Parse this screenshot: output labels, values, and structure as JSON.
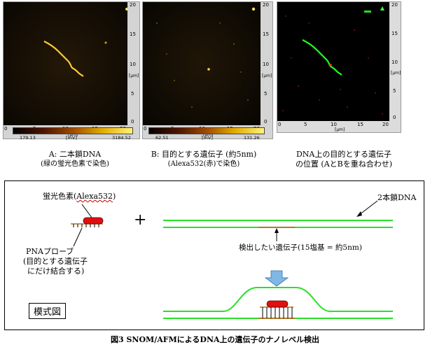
{
  "panels": [
    {
      "id": "A",
      "axis_right_ticks": [
        "20",
        "15",
        "10",
        "5",
        "0"
      ],
      "axis_right_unit": "[μm]",
      "axis_bottom_ticks": [
        "0",
        "5",
        "10",
        "15",
        "20"
      ],
      "axis_bottom_unit": "[μm]",
      "colorbar_min": "179.13",
      "colorbar_unit": "[mV]",
      "colorbar_max": "3184.52",
      "caption_line1": "A: 二本鎖DNA",
      "caption_line2": "(緑の蛍光色素で染色)"
    },
    {
      "id": "B",
      "axis_right_ticks": [
        "20",
        "15",
        "10",
        "5",
        "0"
      ],
      "axis_right_unit": "[μm]",
      "axis_bottom_ticks": [
        "0",
        "5",
        "10",
        "15",
        "20"
      ],
      "axis_bottom_unit": "[μm]",
      "colorbar_min": "62.51",
      "colorbar_unit": "[mV]",
      "colorbar_max": "131.26",
      "caption_line1": "B: 目的とする遺伝子 (約5nm)",
      "caption_line2": "(Alexa532(赤)で染色)"
    },
    {
      "id": "C",
      "axis_right_ticks": [
        "20",
        "15",
        "10",
        "5",
        "0"
      ],
      "axis_right_unit": "[μm]",
      "axis_bottom_ticks": [
        "0",
        "5",
        "10",
        "15",
        "20"
      ],
      "axis_bottom_unit": "[μm]",
      "caption_line1": "DNA上の目的とする遺伝子",
      "caption_line2": "の位置 (AとBを重ね合わせ)"
    }
  ],
  "diagram": {
    "fluor_label_pre": "蛍光色素(",
    "fluor_label_u": "Alexa532",
    "fluor_label_post": ")",
    "plus_sign": "+",
    "dsdna_label": "2本鎖DNA",
    "pna_label_1": "PNAプローブ",
    "pna_label_2": "(目的とする遺伝子",
    "pna_label_3": "にだけ結合する)",
    "target_label": "検出したい遺伝子(15塩基 = 約5nm)",
    "schematic_label": "模式図"
  },
  "figure_title": "図3  SNOM/AFMによるDNA上の遺伝子のナノレベル検出",
  "colors": {
    "dna_green": "#2adf2a",
    "probe_red": "#e01010",
    "probe_base": "#b07a2a",
    "arrow_blue": "#7fb8e6",
    "afm_strand": "#ffcc33",
    "overlay_strand": "#22ff22"
  }
}
